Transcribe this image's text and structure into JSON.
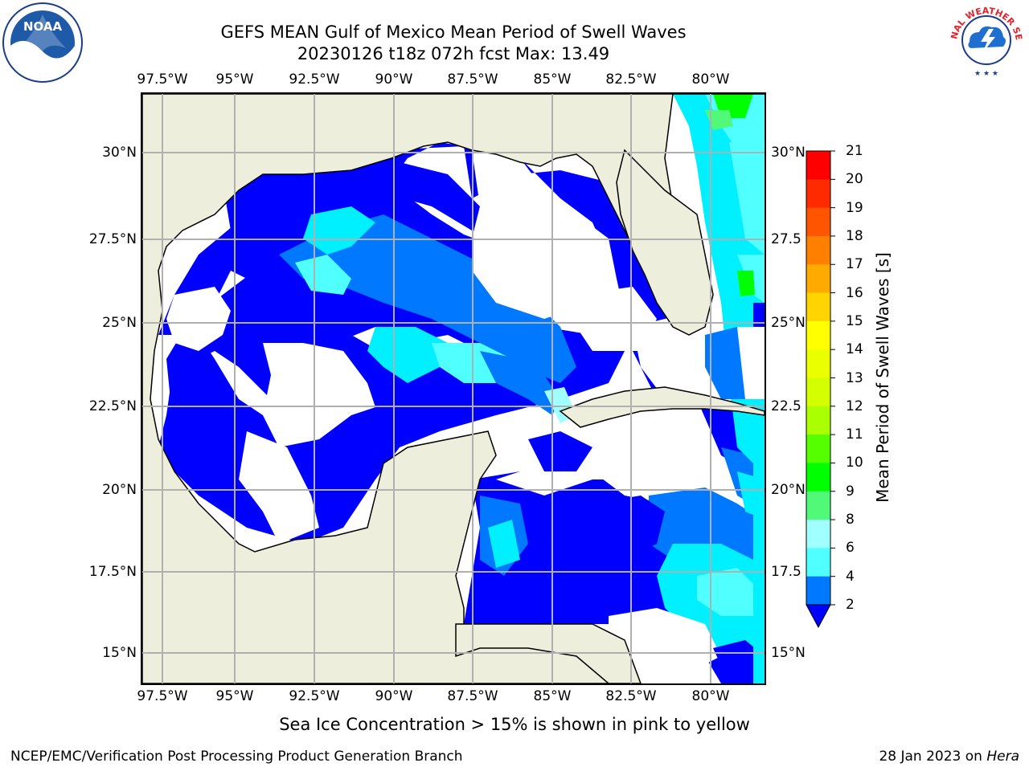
{
  "title": {
    "line1": "GEFS MEAN Gulf of Mexico Mean Period of Swell Waves",
    "line2": "20230126 t18z 072h fcst   Max: 13.49"
  },
  "map": {
    "lon_labels": [
      "97.5°W",
      "95°W",
      "92.5°W",
      "90°W",
      "87.5°W",
      "85°W",
      "82.5°W",
      "80°W"
    ],
    "lat_labels_left": [
      "30°N",
      "27.5°N",
      "25°N",
      "22.5°N",
      "20°N",
      "17.5°N",
      "15°N"
    ],
    "lat_labels_right": [
      "30°N",
      "27.5",
      "25°N",
      "22.5",
      "20°N",
      "17.5",
      "15°N"
    ],
    "extent": {
      "lon_min": -98.0,
      "lon_max": -78.2,
      "lat_min": 14.0,
      "lat_max": 31.8
    },
    "land_color": "#eeeedc",
    "grid_color": "#b0b0b0"
  },
  "colorbar": {
    "label": "Mean Period of Swell Waves [s]",
    "ticks": [
      "21",
      "20",
      "19",
      "18",
      "17",
      "16",
      "15",
      "14",
      "13",
      "12",
      "11",
      "10",
      "9",
      "8",
      "6",
      "4",
      "2"
    ],
    "tick_values": [
      21,
      20,
      19,
      18,
      17,
      16,
      15,
      14,
      13,
      12,
      11,
      10,
      9,
      8,
      6,
      4,
      2
    ],
    "colors": [
      "#ff0000",
      "#ff2a00",
      "#ff5500",
      "#ff7f00",
      "#ffaa00",
      "#ffd400",
      "#ffff00",
      "#eaff00",
      "#d4ff00",
      "#aaff00",
      "#55ff00",
      "#00ff00",
      "#50fa78",
      "#a0ffff",
      "#50ffff",
      "#00f0ff",
      "#0078ff"
    ],
    "under_color": "#0000ff"
  },
  "legend_note": "Sea Ice Concentration > 15% is shown in pink to yellow",
  "footer": {
    "left": "NCEP/EMC/Verification Post Processing Product Generation Branch",
    "date": "28 Jan 2023 on",
    "machine": "Hera"
  },
  "logos": {
    "noaa_text": "NOAA",
    "nws_text": "NATIONAL WEATHER SERVICE"
  }
}
